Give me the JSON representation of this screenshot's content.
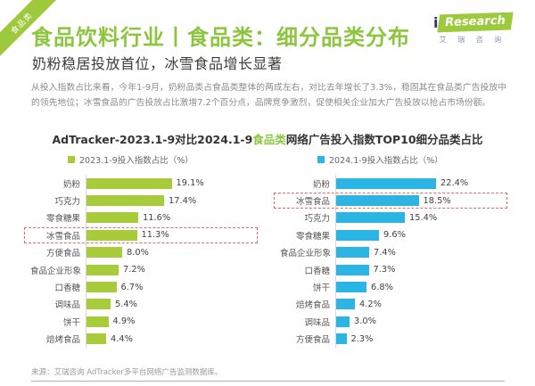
{
  "ribbon": {
    "label": "食品类"
  },
  "header": {
    "title": "食品饮料行业丨食品类：细分品类分布",
    "subtitle": "奶粉稳居投放首位，冰雪食品增长显著"
  },
  "logo": {
    "i": "i",
    "research": "Research",
    "cn": "艾 瑞 咨 询"
  },
  "intro": {
    "text": "从投入指数占比来看，今年1-9月，奶粉品类占食品类整体的两成左右，对比去年增长了3.3%，稳固其在食品类广告投放中的领先地位；冰雪食品的广告投放占比激增7.2个百分点，品牌竞争激烈，促使相关企业加大广告投放以抢占市场份额。"
  },
  "chart_data": {
    "type": "bar",
    "orientation": "horizontal",
    "unit": "%",
    "title": {
      "prefix": "AdTracker-2023.1-9对比2024.1-9",
      "highlight": "食品类",
      "suffix": "网络广告投入指数TOP10细分品类占比"
    },
    "highlight_category": "冰雪食品",
    "xlim": [
      0,
      25
    ],
    "grid": false,
    "legend_position": "top",
    "charts": [
      {
        "legend": "2023.1-9投入指数占比（%）",
        "color": "#a8cb3a",
        "categories": [
          "奶粉",
          "巧克力",
          "零食糖果",
          "冰雪食品",
          "方便食品",
          "食品企业形象",
          "口香糖",
          "调味品",
          "饼干",
          "焙烤食品"
        ],
        "values": [
          19.1,
          17.4,
          11.6,
          11.3,
          8.0,
          7.2,
          6.7,
          5.4,
          4.9,
          4.4
        ]
      },
      {
        "legend": "2024.1-9投入指数占比（%）",
        "color": "#2ab5e4",
        "categories": [
          "奶粉",
          "冰雪食品",
          "巧克力",
          "零食糖果",
          "食品企业形象",
          "口香糖",
          "饼干",
          "焙烤食品",
          "调味品",
          "方便食品"
        ],
        "values": [
          22.4,
          18.5,
          15.4,
          9.6,
          7.4,
          7.3,
          6.8,
          4.2,
          3.0,
          2.3
        ]
      }
    ]
  },
  "footer": {
    "source": "来源：艾瑞咨询 AdTracker多平台网络广告监测数据库。"
  },
  "colors": {
    "brand_green": "#8cc63f",
    "bar_green": "#a8cb3a",
    "bar_blue": "#2ab5e4",
    "highlight_red": "#e4695e"
  }
}
